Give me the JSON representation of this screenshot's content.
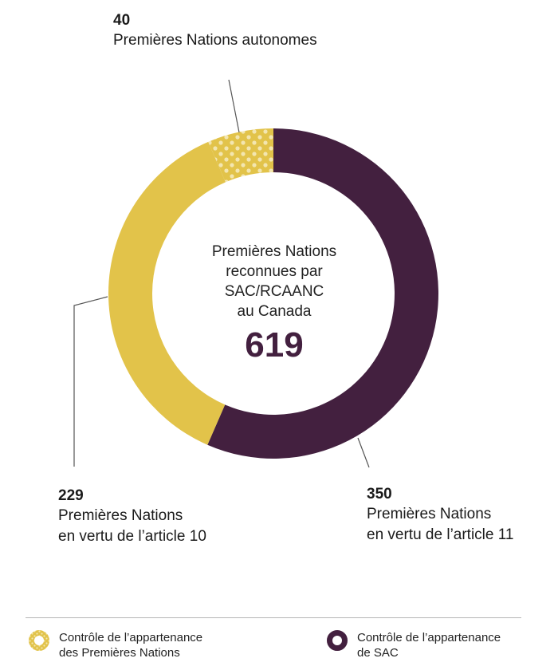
{
  "colors": {
    "first_nations": "#e2c34a",
    "sac": "#43203f",
    "dots": "#f3e6b0",
    "leader": "#555555"
  },
  "center": {
    "text": "Premières Nations\nreconnues par\nSAC/RCAANC\nau Canada",
    "total": "619"
  },
  "labels": {
    "top": {
      "value": "40",
      "text": "Premières Nations autonomes"
    },
    "left": {
      "value": "229",
      "text": "Premières Nations\nen vertu de l’article 10"
    },
    "right": {
      "value": "350",
      "text": "Premières Nations\nen vertu de l’article 11"
    }
  },
  "legend": {
    "first_nations": "Contrôle de l’appartenance\ndes Premières Nations",
    "sac": "Contrôle de l’appartenance\nde SAC"
  },
  "chart_data": {
    "type": "pie",
    "donut": true,
    "total": 619,
    "categories": [
      "Premières Nations en vertu de l’article 11",
      "Premières Nations en vertu de l’article 10",
      "Premières Nations autonomes"
    ],
    "values": [
      350,
      229,
      40
    ],
    "series_colors": [
      "#43203f",
      "#e2c34a",
      "#e2c34a"
    ],
    "patterns": [
      "solid",
      "solid",
      "dotted"
    ],
    "legend_position": "bottom"
  }
}
